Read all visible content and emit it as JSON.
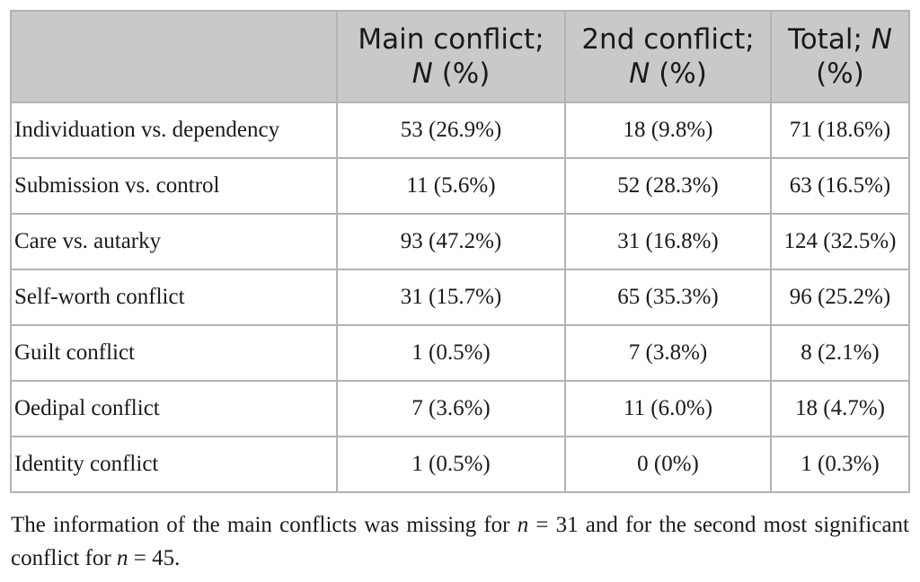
{
  "table": {
    "headers": [
      {
        "text": "",
        "symbol": ""
      },
      {
        "text": "Main conflict;",
        "symbol": "N",
        "rest": " (%)"
      },
      {
        "text": "2nd conflict;",
        "symbol": "N",
        "rest": " (%)"
      },
      {
        "text": "Total; ",
        "symbol": "N",
        "rest": "(%)"
      }
    ],
    "rows": [
      {
        "label": "Individuation vs. dependency",
        "main": "53 (26.9%)",
        "second": "18 (9.8%)",
        "total": "71 (18.6%)"
      },
      {
        "label": "Submission vs. control",
        "main": "11 (5.6%)",
        "second": "52 (28.3%)",
        "total": "63 (16.5%)"
      },
      {
        "label": "Care vs. autarky",
        "main": "93 (47.2%)",
        "second": "31 (16.8%)",
        "total": "124 (32.5%)"
      },
      {
        "label": "Self-worth conflict",
        "main": "31 (15.7%)",
        "second": "65 (35.3%)",
        "total": "96 (25.2%)"
      },
      {
        "label": "Guilt conflict",
        "main": "1 (0.5%)",
        "second": "7 (3.8%)",
        "total": "8 (2.1%)"
      },
      {
        "label": "Oedipal conflict",
        "main": "7 (3.6%)",
        "second": "11 (6.0%)",
        "total": "18 (4.7%)"
      },
      {
        "label": "Identity conflict",
        "main": "1 (0.5%)",
        "second": "0 (0%)",
        "total": "1 (0.3%)"
      }
    ]
  },
  "footnote": {
    "part1": "The information of the main conflicts was missing for ",
    "var1": "n",
    "part2": " = 31 and for the second most significant conflict for ",
    "var2": "n",
    "part3": " = 45."
  },
  "colors": {
    "header_bg": "#c9c9c9",
    "border": "#b3b3b3",
    "text": "#1a1a1a"
  }
}
